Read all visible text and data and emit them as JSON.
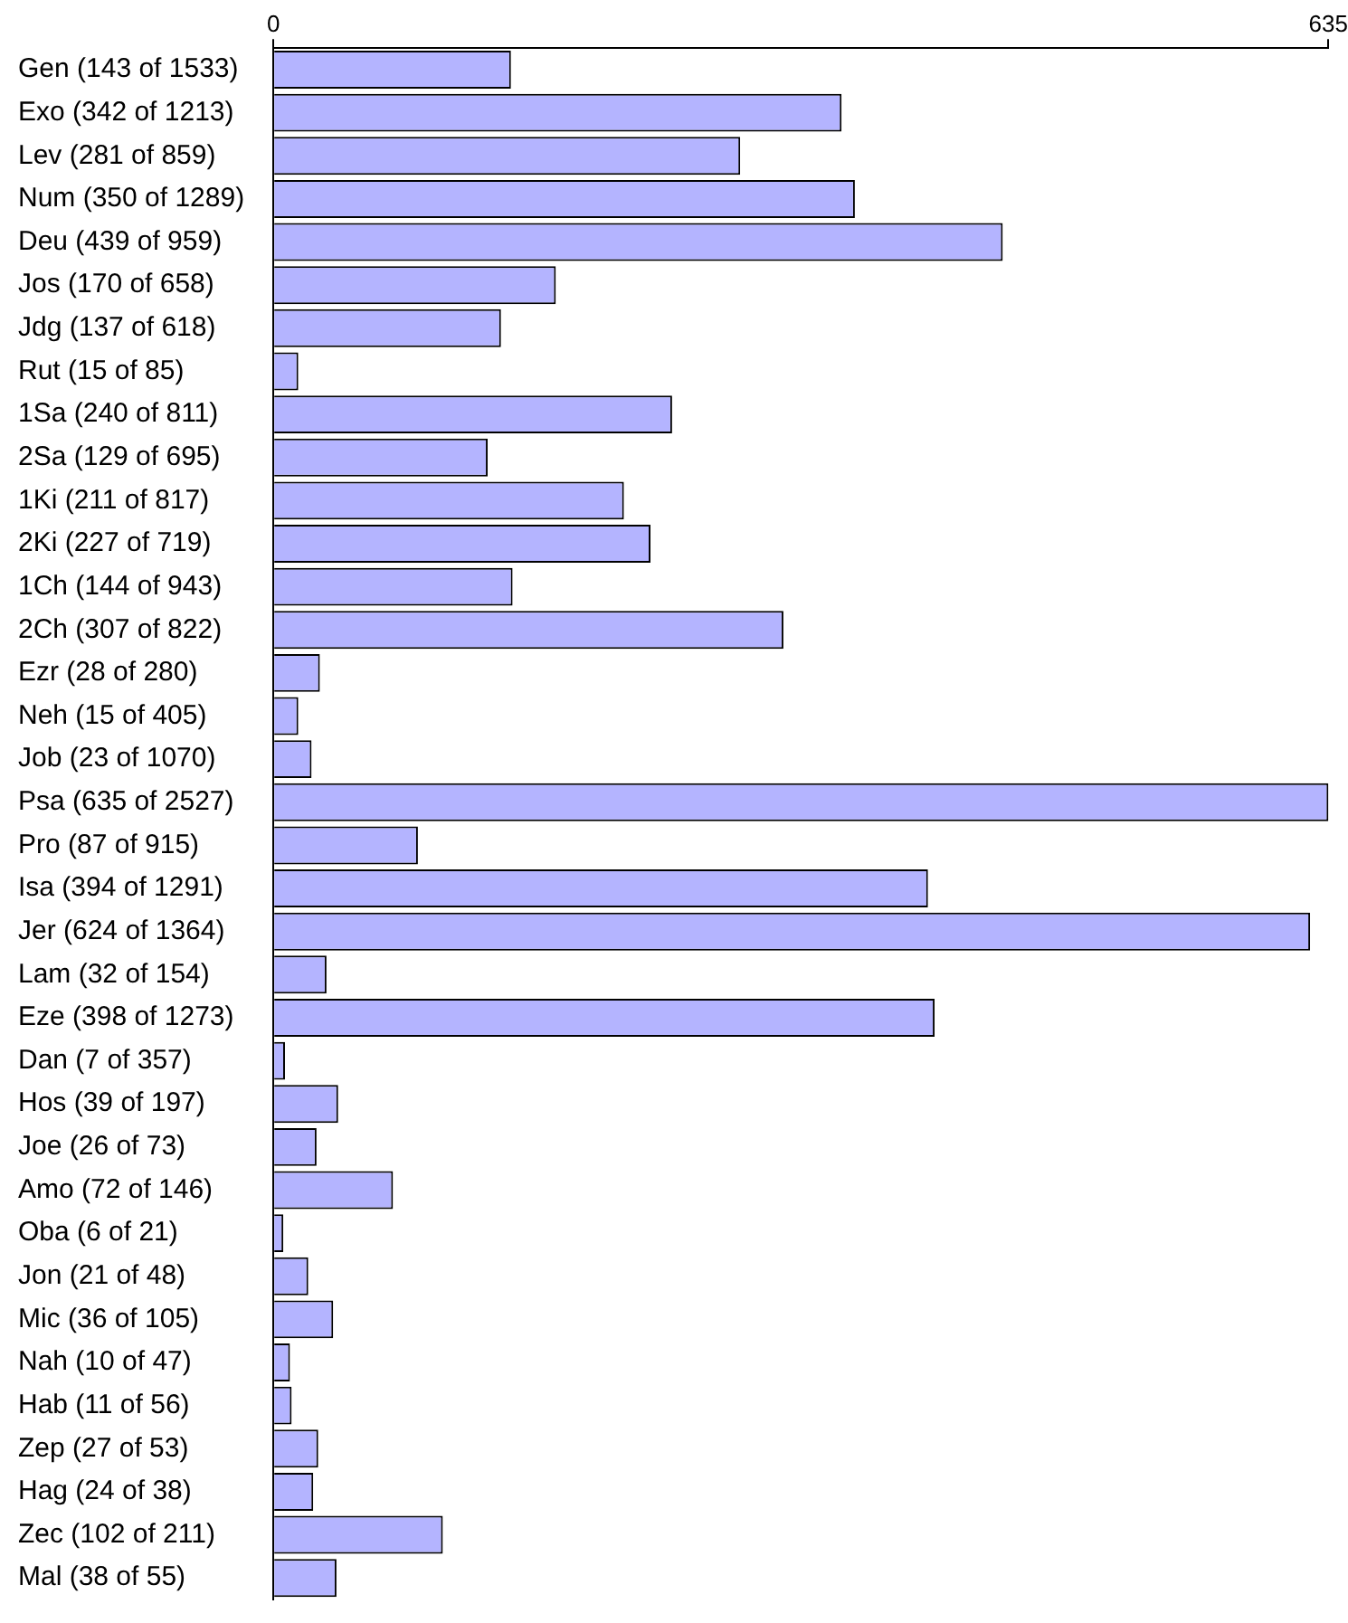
{
  "chart_data": {
    "type": "bar",
    "orientation": "horizontal",
    "categories": [
      "Gen (143 of 1533)",
      "Exo (342 of 1213)",
      "Lev (281 of 859)",
      "Num (350 of 1289)",
      "Deu (439 of 959)",
      "Jos (170 of 658)",
      "Jdg (137 of 618)",
      "Rut (15 of 85)",
      "1Sa (240 of 811)",
      "2Sa (129 of 695)",
      "1Ki (211 of 817)",
      "2Ki (227 of 719)",
      "1Ch (144 of 943)",
      "2Ch (307 of 822)",
      "Ezr (28 of 280)",
      "Neh (15 of 405)",
      "Job (23 of 1070)",
      "Psa (635 of 2527)",
      "Pro (87 of 915)",
      "Isa (394 of 1291)",
      "Jer (624 of 1364)",
      "Lam (32 of 154)",
      "Eze (398 of 1273)",
      "Dan (7 of 357)",
      "Hos (39 of 197)",
      "Joe (26 of 73)",
      "Amo (72 of 146)",
      "Oba (6 of 21)",
      "Jon (21 of 48)",
      "Mic (36 of 105)",
      "Nah (10 of 47)",
      "Hab (11 of 56)",
      "Zep (27 of 53)",
      "Hag (24 of 38)",
      "Zec (102 of 211)",
      "Mal (38 of 55)"
    ],
    "values": [
      143,
      342,
      281,
      350,
      439,
      170,
      137,
      15,
      240,
      129,
      211,
      227,
      144,
      307,
      28,
      15,
      23,
      635,
      87,
      394,
      624,
      32,
      398,
      7,
      39,
      26,
      72,
      6,
      21,
      36,
      10,
      11,
      27,
      24,
      102,
      38
    ],
    "color": "#b4b4ff",
    "xlim": [
      0,
      635
    ],
    "xticks": [
      0,
      635
    ],
    "grid": false,
    "legend": false
  }
}
